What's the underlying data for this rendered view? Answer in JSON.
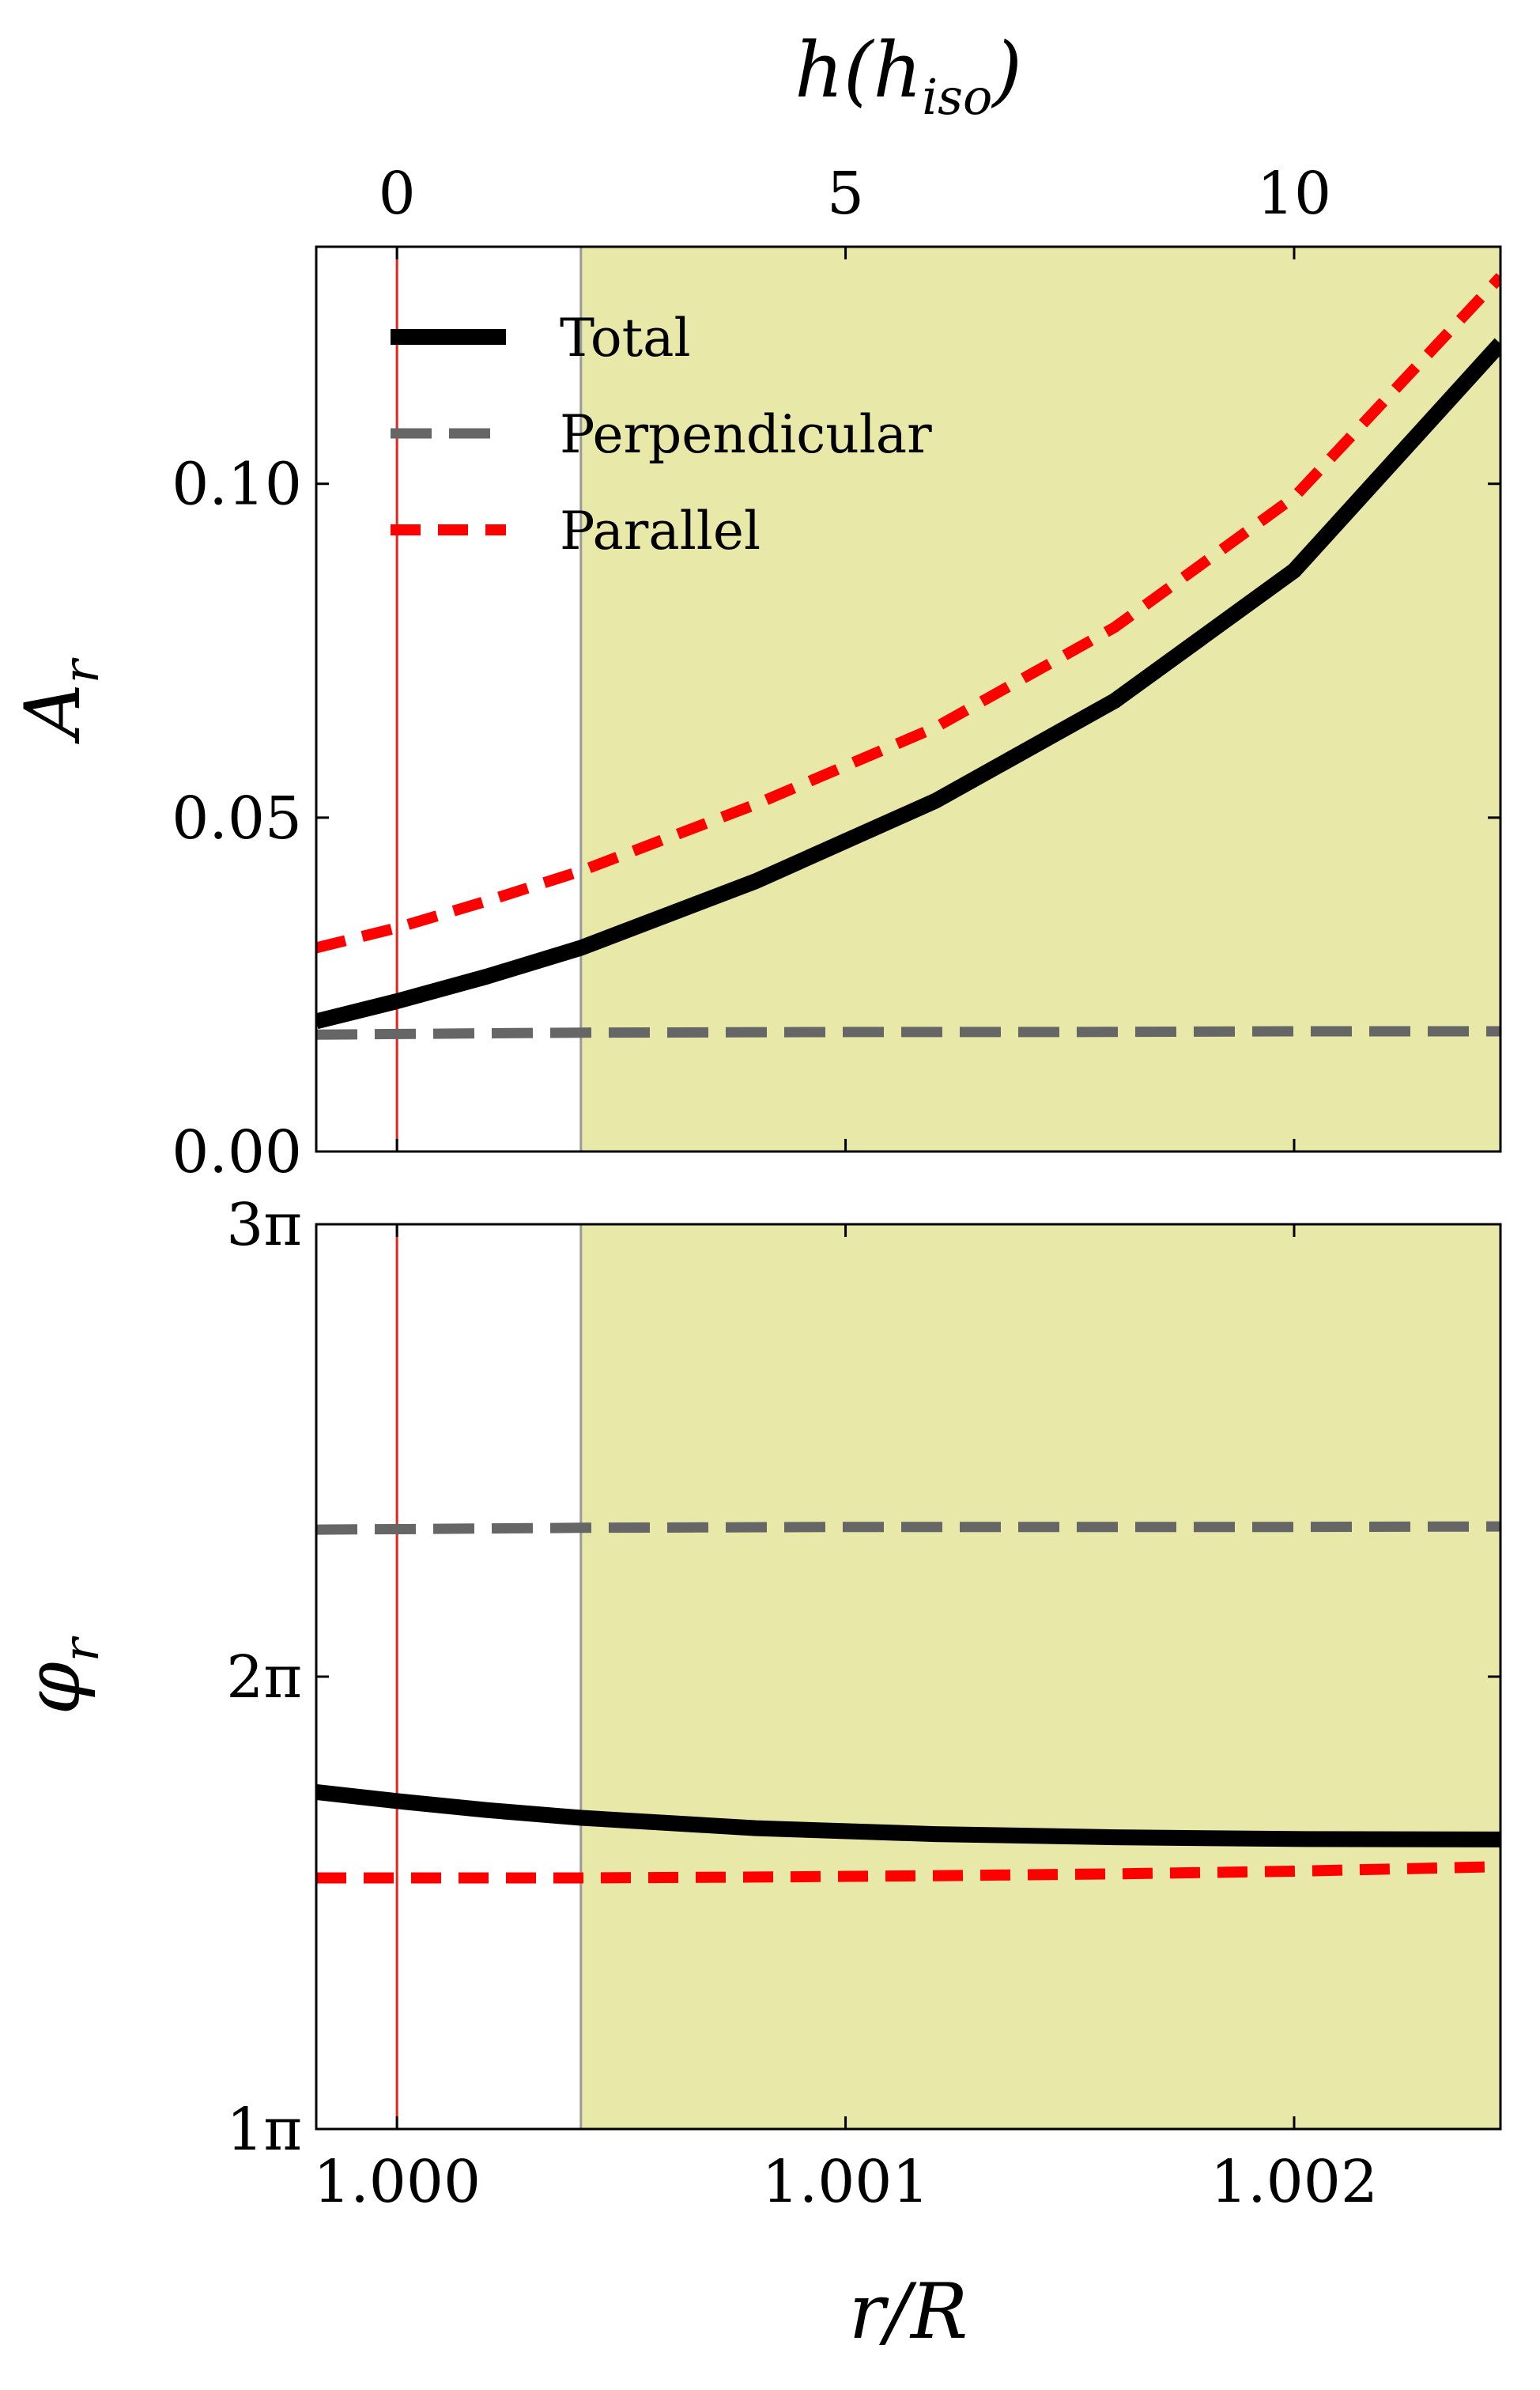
{
  "chart_data": [
    {
      "type": "line",
      "panel": "top",
      "ylabel": "A_r",
      "top_xlabel": "h(h_iso)",
      "xlim": [
        0.99982,
        1.00246
      ],
      "ylim": [
        0.0,
        0.1355
      ],
      "yticks": [
        0.0,
        0.05,
        0.1
      ],
      "ytick_labels": [
        "0.00",
        "0.05",
        "0.10"
      ],
      "top_xticks_h": [
        0,
        5,
        10
      ],
      "top_xtick_labels": [
        "0",
        "5",
        "10"
      ],
      "h_to_r": {
        "r_at_h0": 1.0,
        "r_per_h": 0.0002
      },
      "grid": false,
      "shaded_region": {
        "x_start": 1.00041,
        "x_end": 1.00246,
        "color": "#e8e8a8"
      },
      "vlines": [
        {
          "x": 1.0,
          "color": "#e8231e"
        },
        {
          "x": 1.00041,
          "color": "#9a9a9a"
        }
      ],
      "legend": {
        "placement": "top-left"
      },
      "series": [
        {
          "name": "Total",
          "color": "#000000",
          "style": "solid",
          "x": [
            0.99982,
            1.0,
            1.0002,
            1.00041,
            1.0008,
            1.0012,
            1.0016,
            1.002,
            1.00246
          ],
          "y": [
            0.0195,
            0.0225,
            0.0262,
            0.0305,
            0.0405,
            0.0525,
            0.0675,
            0.087,
            0.121
          ]
        },
        {
          "name": "Perpendicular",
          "color": "#666666",
          "style": "dashed",
          "x": [
            0.99982,
            1.0,
            1.00041,
            1.001,
            1.0015,
            1.002,
            1.00246
          ],
          "y": [
            0.0175,
            0.0176,
            0.0178,
            0.0179,
            0.0179,
            0.018,
            0.018
          ]
        },
        {
          "name": "Parallel",
          "color": "#ff0000",
          "style": "dashed",
          "x": [
            0.99982,
            1.0,
            1.0002,
            1.00041,
            1.0008,
            1.0012,
            1.0016,
            1.002,
            1.00246
          ],
          "y": [
            0.0305,
            0.0335,
            0.0375,
            0.042,
            0.052,
            0.0635,
            0.0785,
            0.098,
            0.131
          ]
        }
      ]
    },
    {
      "type": "line",
      "panel": "bottom",
      "ylabel": "φ_r",
      "xlabel": "r/R",
      "xlim": [
        0.99982,
        1.00246
      ],
      "ylim": [
        1.0,
        3.0
      ],
      "ylim_unit": "π",
      "yticks": [
        1,
        2,
        3
      ],
      "ytick_labels": [
        "1π",
        "2π",
        "3π"
      ],
      "xticks": [
        1.0,
        1.001,
        1.002
      ],
      "xtick_labels": [
        "1.000",
        "1.001",
        "1.002"
      ],
      "grid": false,
      "shaded_region": {
        "x_start": 1.00041,
        "x_end": 1.00246,
        "color": "#e8e8a8"
      },
      "vlines": [
        {
          "x": 1.0,
          "color": "#e8231e"
        },
        {
          "x": 1.00041,
          "color": "#9a9a9a"
        }
      ],
      "series": [
        {
          "name": "Total",
          "color": "#000000",
          "style": "solid",
          "x": [
            0.99982,
            1.0,
            1.0002,
            1.00041,
            1.0008,
            1.0012,
            1.0016,
            1.002,
            1.00246
          ],
          "y": [
            1.745,
            1.725,
            1.705,
            1.688,
            1.665,
            1.652,
            1.645,
            1.641,
            1.64
          ]
        },
        {
          "name": "Perpendicular",
          "color": "#666666",
          "style": "dashed",
          "x": [
            0.99982,
            1.0,
            1.00041,
            1.001,
            1.0015,
            1.002,
            1.00246
          ],
          "y": [
            2.325,
            2.326,
            2.329,
            2.331,
            2.331,
            2.331,
            2.332
          ]
        },
        {
          "name": "Parallel",
          "color": "#ff0000",
          "style": "dashed",
          "x": [
            0.99982,
            1.0,
            1.00041,
            1.0008,
            1.0012,
            1.0016,
            1.002,
            1.00246
          ],
          "y": [
            1.555,
            1.555,
            1.555,
            1.557,
            1.56,
            1.564,
            1.57,
            1.58
          ]
        }
      ]
    }
  ]
}
